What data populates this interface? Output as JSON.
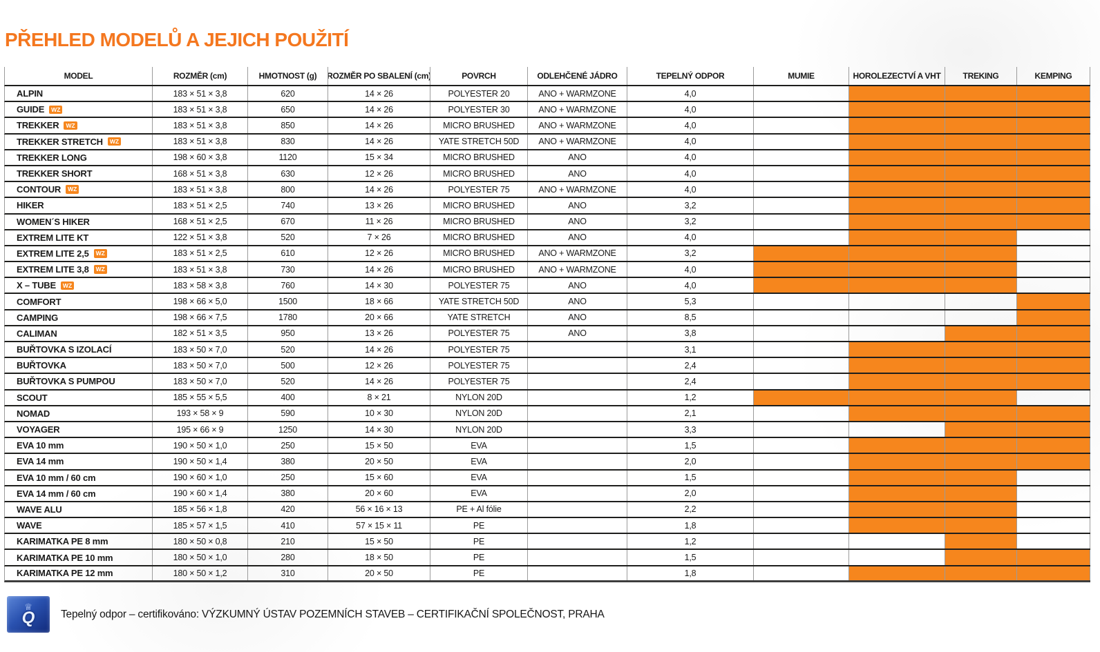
{
  "title": "PŘEHLED MODELŮ A JEJICH POUŽITÍ",
  "badge_label": "WZ",
  "colors": {
    "orange_cell": "#F6861D",
    "orange_title": "#F4771F",
    "grid_dark": "#1e1e1c",
    "grid_gray": "#9b9b9b",
    "logo_blue": "#2a52b0"
  },
  "table": {
    "columns": [
      {
        "key": "model",
        "label": "MODEL"
      },
      {
        "key": "rozmer",
        "label": "ROZMĚR (cm)"
      },
      {
        "key": "hmotnost",
        "label": "HMOTNOST (g)"
      },
      {
        "key": "sbaleni",
        "label": "ROZMĚR PO SBALENÍ (cm)"
      },
      {
        "key": "povrch",
        "label": "POVRCH"
      },
      {
        "key": "jadro",
        "label": "ODLEHČENÉ JÁDRO"
      },
      {
        "key": "odpor",
        "label": "TEPELNÝ ODPOR"
      },
      {
        "key": "mumie",
        "label": "MUMIE"
      },
      {
        "key": "horolezectvi",
        "label": "HOROLEZECTVÍ A VHT"
      },
      {
        "key": "treking",
        "label": "TREKING"
      },
      {
        "key": "kemping",
        "label": "KEMPING"
      }
    ],
    "rows": [
      {
        "model": "ALPIN",
        "wz": false,
        "rozmer": "183 × 51 × 3,8",
        "hmotnost": "620",
        "sbaleni": "14 × 26",
        "povrch": "POLYESTER 20",
        "jadro": "ANO + WARMZONE",
        "odpor": "4,0",
        "usage": {
          "mumie": false,
          "horolezectvi": true,
          "treking": true,
          "kemping": true
        }
      },
      {
        "model": "GUIDE",
        "wz": true,
        "rozmer": "183 × 51 × 3,8",
        "hmotnost": "650",
        "sbaleni": "14 × 26",
        "povrch": "POLYESTER 30",
        "jadro": "ANO + WARMZONE",
        "odpor": "4,0",
        "usage": {
          "mumie": false,
          "horolezectvi": true,
          "treking": true,
          "kemping": true
        }
      },
      {
        "model": "TREKKER",
        "wz": true,
        "rozmer": "183 × 51 × 3,8",
        "hmotnost": "850",
        "sbaleni": "14 × 26",
        "povrch": "MICRO BRUSHED",
        "jadro": "ANO + WARMZONE",
        "odpor": "4,0",
        "usage": {
          "mumie": false,
          "horolezectvi": true,
          "treking": true,
          "kemping": true
        }
      },
      {
        "model": "TREKKER STRETCH",
        "wz": true,
        "rozmer": "183 × 51 × 3,8",
        "hmotnost": "830",
        "sbaleni": "14 × 26",
        "povrch": "YATE STRETCH 50D",
        "jadro": "ANO + WARMZONE",
        "odpor": "4,0",
        "usage": {
          "mumie": false,
          "horolezectvi": true,
          "treking": true,
          "kemping": true
        }
      },
      {
        "model": "TREKKER LONG",
        "wz": false,
        "rozmer": "198 × 60 × 3,8",
        "hmotnost": "1120",
        "sbaleni": "15 × 34",
        "povrch": "MICRO BRUSHED",
        "jadro": "ANO",
        "odpor": "4,0",
        "usage": {
          "mumie": false,
          "horolezectvi": true,
          "treking": true,
          "kemping": true
        }
      },
      {
        "model": "TREKKER SHORT",
        "wz": false,
        "rozmer": "168 × 51 × 3,8",
        "hmotnost": "630",
        "sbaleni": "12 × 26",
        "povrch": "MICRO BRUSHED",
        "jadro": "ANO",
        "odpor": "4,0",
        "usage": {
          "mumie": false,
          "horolezectvi": true,
          "treking": true,
          "kemping": true
        }
      },
      {
        "model": "CONTOUR",
        "wz": true,
        "rozmer": "183 × 51 × 3,8",
        "hmotnost": "800",
        "sbaleni": "14 × 26",
        "povrch": "POLYESTER 75",
        "jadro": "ANO + WARMZONE",
        "odpor": "4,0",
        "usage": {
          "mumie": false,
          "horolezectvi": true,
          "treking": true,
          "kemping": true
        }
      },
      {
        "model": "HIKER",
        "wz": false,
        "rozmer": "183 × 51 × 2,5",
        "hmotnost": "740",
        "sbaleni": "13 × 26",
        "povrch": "MICRO BRUSHED",
        "jadro": "ANO",
        "odpor": "3,2",
        "usage": {
          "mumie": false,
          "horolezectvi": true,
          "treking": true,
          "kemping": true
        }
      },
      {
        "model": "WOMEN´S HIKER",
        "wz": false,
        "rozmer": "168 × 51 × 2,5",
        "hmotnost": "670",
        "sbaleni": "11 × 26",
        "povrch": "MICRO BRUSHED",
        "jadro": "ANO",
        "odpor": "3,2",
        "usage": {
          "mumie": false,
          "horolezectvi": true,
          "treking": true,
          "kemping": true
        }
      },
      {
        "model": "EXTREM LITE KT",
        "wz": false,
        "rozmer": "122 × 51 × 3,8",
        "hmotnost": "520",
        "sbaleni": "7 × 26",
        "povrch": "MICRO BRUSHED",
        "jadro": "ANO",
        "odpor": "4,0",
        "usage": {
          "mumie": false,
          "horolezectvi": true,
          "treking": true,
          "kemping": false
        }
      },
      {
        "model": "EXTREM LITE 2,5",
        "wz": true,
        "rozmer": "183 × 51 × 2,5",
        "hmotnost": "610",
        "sbaleni": "12 × 26",
        "povrch": "MICRO BRUSHED",
        "jadro": "ANO + WARMZONE",
        "odpor": "3,2",
        "usage": {
          "mumie": true,
          "horolezectvi": true,
          "treking": true,
          "kemping": false
        }
      },
      {
        "model": "EXTREM LITE 3,8",
        "wz": true,
        "rozmer": "183 × 51 × 3,8",
        "hmotnost": "730",
        "sbaleni": "14 × 26",
        "povrch": "MICRO BRUSHED",
        "jadro": "ANO + WARMZONE",
        "odpor": "4,0",
        "usage": {
          "mumie": true,
          "horolezectvi": true,
          "treking": true,
          "kemping": false
        }
      },
      {
        "model": "X – TUBE",
        "wz": true,
        "rozmer": "183 × 58 × 3,8",
        "hmotnost": "760",
        "sbaleni": "14 × 30",
        "povrch": "POLYESTER 75",
        "jadro": "ANO",
        "odpor": "4,0",
        "usage": {
          "mumie": true,
          "horolezectvi": true,
          "treking": true,
          "kemping": false
        }
      },
      {
        "model": "COMFORT",
        "wz": false,
        "rozmer": "198 × 66 × 5,0",
        "hmotnost": "1500",
        "sbaleni": "18 × 66",
        "povrch": "YATE STRETCH 50D",
        "jadro": "ANO",
        "odpor": "5,3",
        "usage": {
          "mumie": false,
          "horolezectvi": false,
          "treking": false,
          "kemping": true
        }
      },
      {
        "model": "CAMPING",
        "wz": false,
        "rozmer": "198 × 66 × 7,5",
        "hmotnost": "1780",
        "sbaleni": "20 × 66",
        "povrch": "YATE STRETCH",
        "jadro": "ANO",
        "odpor": "8,5",
        "usage": {
          "mumie": false,
          "horolezectvi": false,
          "treking": false,
          "kemping": true
        }
      },
      {
        "model": "CALIMAN",
        "wz": false,
        "rozmer": "182 × 51 × 3,5",
        "hmotnost": "950",
        "sbaleni": "13 × 26",
        "povrch": "POLYESTER 75",
        "jadro": "ANO",
        "odpor": "3,8",
        "usage": {
          "mumie": false,
          "horolezectvi": false,
          "treking": true,
          "kemping": true
        }
      },
      {
        "model": "BUŘTOVKA S IZOLACÍ",
        "wz": false,
        "rozmer": "183 × 50 × 7,0",
        "hmotnost": "520",
        "sbaleni": "14 × 26",
        "povrch": "POLYESTER 75",
        "jadro": "",
        "odpor": "3,1",
        "usage": {
          "mumie": false,
          "horolezectvi": true,
          "treking": true,
          "kemping": true
        }
      },
      {
        "model": "BUŘTOVKA",
        "wz": false,
        "rozmer": "183 × 50 × 7,0",
        "hmotnost": "500",
        "sbaleni": "12 × 26",
        "povrch": "POLYESTER 75",
        "jadro": "",
        "odpor": "2,4",
        "usage": {
          "mumie": false,
          "horolezectvi": true,
          "treking": true,
          "kemping": true
        }
      },
      {
        "model": "BUŘTOVKA S PUMPOU",
        "wz": false,
        "rozmer": "183 × 50 × 7,0",
        "hmotnost": "520",
        "sbaleni": "14 × 26",
        "povrch": "POLYESTER 75",
        "jadro": "",
        "odpor": "2,4",
        "usage": {
          "mumie": false,
          "horolezectvi": true,
          "treking": true,
          "kemping": true
        }
      },
      {
        "model": "SCOUT",
        "wz": false,
        "rozmer": "185 × 55 × 5,5",
        "hmotnost": "400",
        "sbaleni": "8 × 21",
        "povrch": "NYLON 20D",
        "jadro": "",
        "odpor": "1,2",
        "usage": {
          "mumie": true,
          "horolezectvi": true,
          "treking": true,
          "kemping": false
        }
      },
      {
        "model": "NOMAD",
        "wz": false,
        "rozmer": "193 × 58 × 9",
        "hmotnost": "590",
        "sbaleni": "10 × 30",
        "povrch": "NYLON 20D",
        "jadro": "",
        "odpor": "2,1",
        "usage": {
          "mumie": false,
          "horolezectvi": true,
          "treking": true,
          "kemping": true
        }
      },
      {
        "model": "VOYAGER",
        "wz": false,
        "rozmer": "195 × 66 × 9",
        "hmotnost": "1250",
        "sbaleni": "14 × 30",
        "povrch": "NYLON 20D",
        "jadro": "",
        "odpor": "3,3",
        "usage": {
          "mumie": false,
          "horolezectvi": false,
          "treking": true,
          "kemping": true
        }
      },
      {
        "model": "EVA 10 mm",
        "wz": false,
        "rozmer": "190 × 50 × 1,0",
        "hmotnost": "250",
        "sbaleni": "15 × 50",
        "povrch": "EVA",
        "jadro": "",
        "odpor": "1,5",
        "usage": {
          "mumie": false,
          "horolezectvi": true,
          "treking": true,
          "kemping": true
        }
      },
      {
        "model": "EVA 14 mm",
        "wz": false,
        "rozmer": "190 × 50 × 1,4",
        "hmotnost": "380",
        "sbaleni": "20 × 50",
        "povrch": "EVA",
        "jadro": "",
        "odpor": "2,0",
        "usage": {
          "mumie": false,
          "horolezectvi": true,
          "treking": true,
          "kemping": true
        }
      },
      {
        "model": "EVA 10 mm / 60 cm",
        "wz": false,
        "rozmer": "190 × 60 × 1,0",
        "hmotnost": "250",
        "sbaleni": "15 × 60",
        "povrch": "EVA",
        "jadro": "",
        "odpor": "1,5",
        "usage": {
          "mumie": false,
          "horolezectvi": true,
          "treking": true,
          "kemping": false
        }
      },
      {
        "model": "EVA 14 mm / 60 cm",
        "wz": false,
        "rozmer": "190 × 60 × 1,4",
        "hmotnost": "380",
        "sbaleni": "20 × 60",
        "povrch": "EVA",
        "jadro": "",
        "odpor": "2,0",
        "usage": {
          "mumie": false,
          "horolezectvi": true,
          "treking": true,
          "kemping": false
        }
      },
      {
        "model": "WAVE ALU",
        "wz": false,
        "rozmer": "185 × 56 × 1,8",
        "hmotnost": "420",
        "sbaleni": "56 × 16 × 13",
        "povrch": "PE + Al fólie",
        "jadro": "",
        "odpor": "2,2",
        "usage": {
          "mumie": false,
          "horolezectvi": true,
          "treking": true,
          "kemping": false
        }
      },
      {
        "model": "WAVE",
        "wz": false,
        "rozmer": "185 × 57 × 1,5",
        "hmotnost": "410",
        "sbaleni": "57 × 15 × 11",
        "povrch": "PE",
        "jadro": "",
        "odpor": "1,8",
        "usage": {
          "mumie": false,
          "horolezectvi": true,
          "treking": true,
          "kemping": false
        }
      },
      {
        "model": "KARIMATKA PE 8 mm",
        "wz": false,
        "rozmer": "180 × 50 × 0,8",
        "hmotnost": "210",
        "sbaleni": "15 × 50",
        "povrch": "PE",
        "jadro": "",
        "odpor": "1,2",
        "usage": {
          "mumie": false,
          "horolezectvi": false,
          "treking": true,
          "kemping": false
        }
      },
      {
        "model": "KARIMATKA PE 10 mm",
        "wz": false,
        "rozmer": "180 × 50 × 1,0",
        "hmotnost": "280",
        "sbaleni": "18 × 50",
        "povrch": "PE",
        "jadro": "",
        "odpor": "1,5",
        "usage": {
          "mumie": false,
          "horolezectvi": false,
          "treking": true,
          "kemping": true
        }
      },
      {
        "model": "KARIMATKA PE 12 mm",
        "wz": false,
        "rozmer": "180 × 50 × 1,2",
        "hmotnost": "310",
        "sbaleni": "20 × 50",
        "povrch": "PE",
        "jadro": "",
        "odpor": "1,8",
        "usage": {
          "mumie": false,
          "horolezectvi": true,
          "treking": true,
          "kemping": true
        }
      }
    ]
  },
  "footer": {
    "text": "Tepelný odpor – certifikováno: VÝZKUMNÝ ÚSTAV POZEMNÍCH STAVEB – CERTIFIKAČNÍ SPOLEČNOST, PRAHA",
    "logo": "certification-logo",
    "logo_emblem": "Q",
    "logo_crown": "♕"
  }
}
